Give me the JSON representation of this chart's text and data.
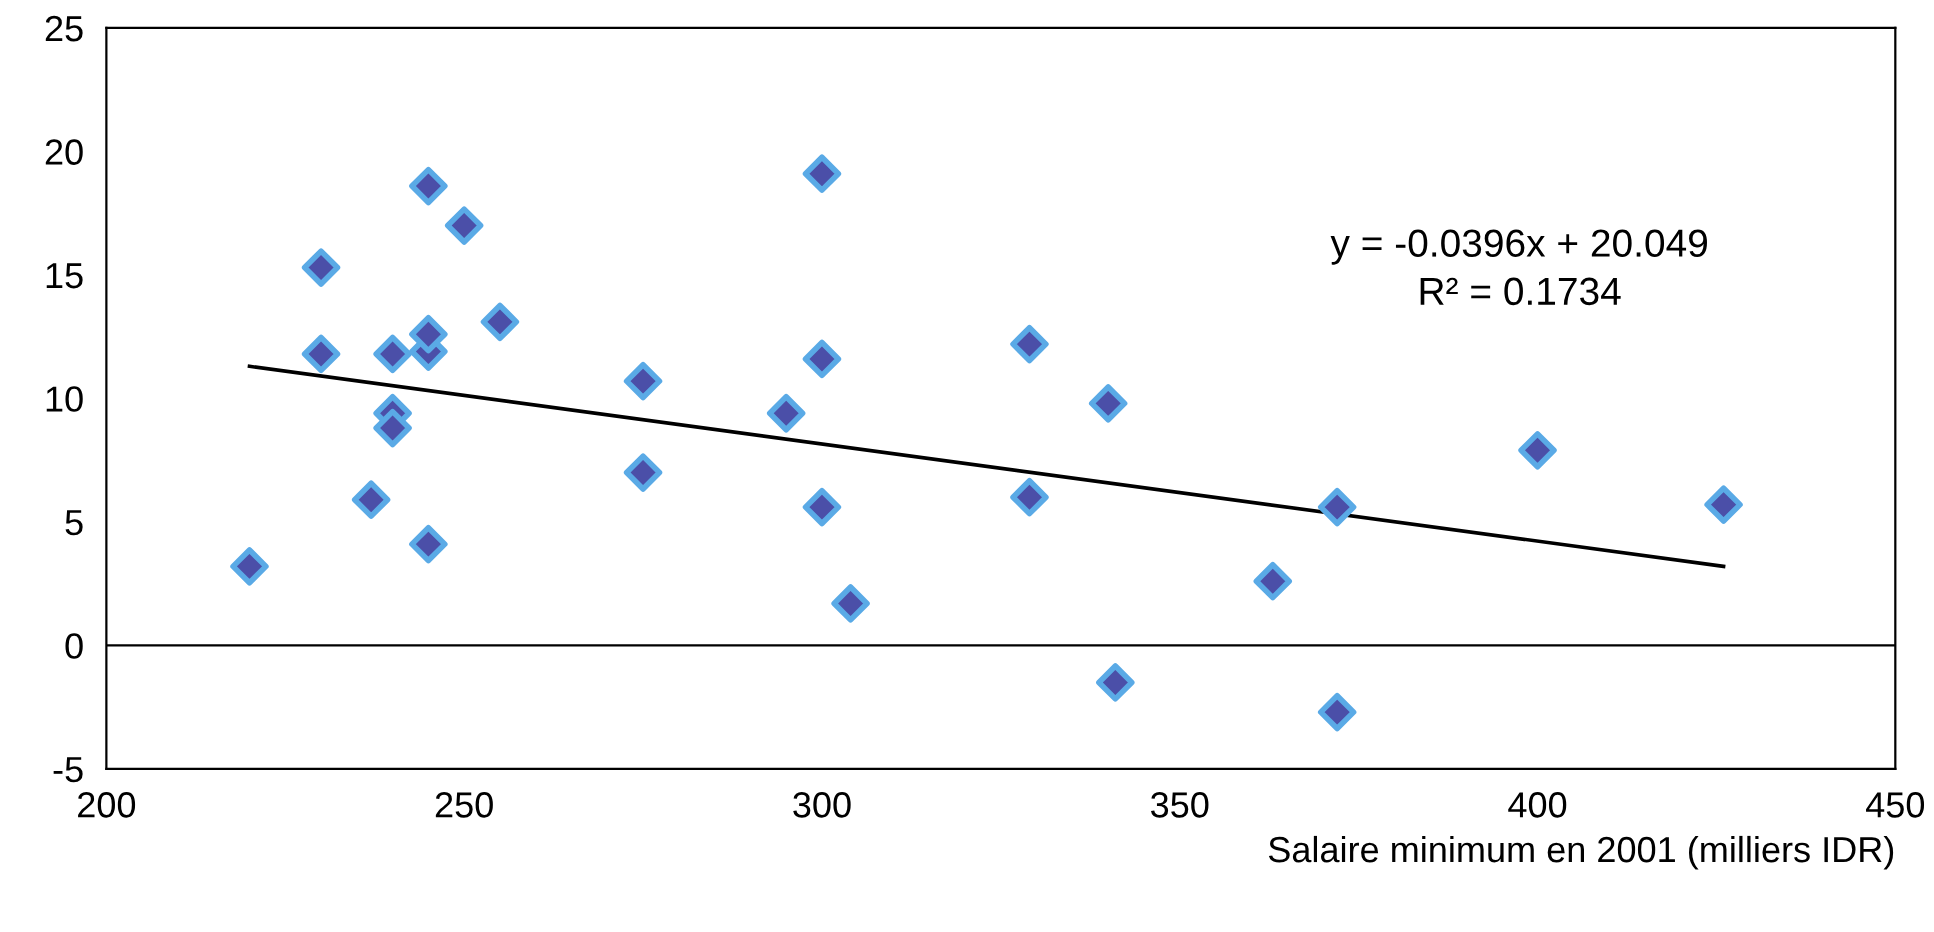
{
  "chart_data": {
    "type": "scatter",
    "xlabel": "Salaire minimum en 2001 (milliers IDR)",
    "xlim": [
      200,
      450
    ],
    "xticks": [
      200,
      250,
      300,
      350,
      400,
      450
    ],
    "ylim": [
      -5,
      25
    ],
    "yticks": [
      -5,
      0,
      5,
      10,
      15,
      20,
      25
    ],
    "grid": false,
    "legend": false,
    "series": [
      {
        "marker": "diamond",
        "color": "#4b4fa8",
        "x": [
          220,
          230,
          230,
          237,
          240,
          240,
          240,
          245,
          245,
          245,
          245,
          250,
          255,
          275,
          275,
          295,
          300,
          300,
          300,
          304,
          329,
          329,
          340,
          341,
          363,
          372,
          372,
          400,
          426
        ],
        "values": [
          3.2,
          11.8,
          15.3,
          5.9,
          11.8,
          9.4,
          8.8,
          4.1,
          11.9,
          12.6,
          18.6,
          17.0,
          13.1,
          10.7,
          7.0,
          9.4,
          19.1,
          11.6,
          5.6,
          1.7,
          12.2,
          6.0,
          9.8,
          -1.5,
          2.6,
          5.6,
          -2.7,
          7.9,
          5.7
        ]
      },
      {
        "type": "line",
        "color": "#000000",
        "x": [
          220,
          426
        ],
        "values": [
          11.3,
          3.2
        ]
      }
    ],
    "ref_lines": [
      {
        "axis": "y",
        "value": 0,
        "color": "#000000"
      }
    ],
    "annotations": [
      "y = -0.0396x + 20.049",
      "R² = 0.1734"
    ]
  }
}
